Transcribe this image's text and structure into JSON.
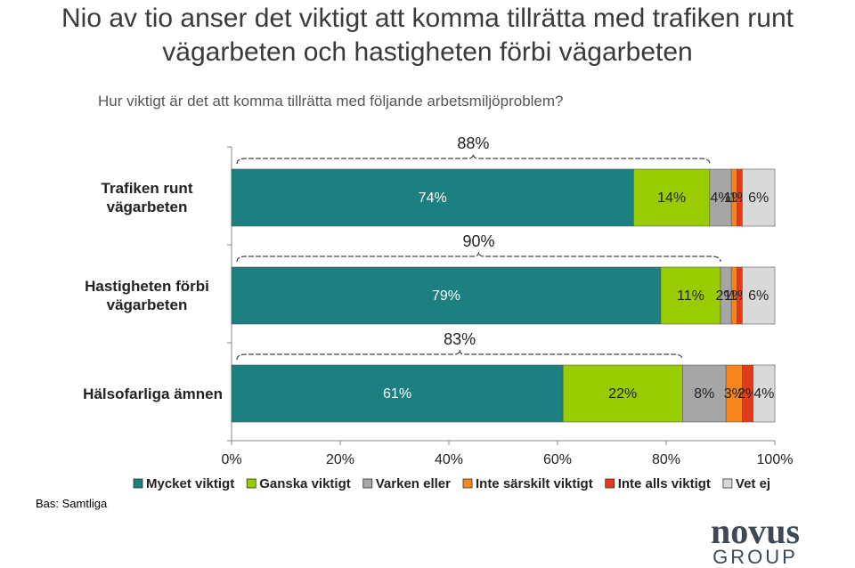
{
  "chart_data": {
    "type": "stacked-bar-horizontal",
    "title": "Nio av tio anser det viktigt att komma tillrätta med trafiken runt vägarbeten och hastigheten förbi vägarbeten",
    "subtitle": "Hur viktigt är det att komma tillrätta med följande arbetsmiljöproblem?",
    "categories": [
      "Trafiken runt vägarbeten",
      "Hastigheten förbi vägarbeten",
      "Hälsofarliga ämnen"
    ],
    "series": [
      {
        "name": "Mycket viktigt",
        "color": "#1c8080",
        "values": [
          74,
          79,
          61
        ],
        "value_labels": [
          "74%",
          "79%",
          "61%"
        ]
      },
      {
        "name": "Ganska viktigt",
        "color": "#99cc00",
        "values": [
          14,
          11,
          22
        ],
        "value_labels": [
          "14%",
          "11%",
          "22%"
        ]
      },
      {
        "name": "Varken eller",
        "color": "#a6a6a6",
        "values": [
          4,
          2,
          8
        ],
        "value_labels": [
          "4%",
          "2%",
          "8%"
        ]
      },
      {
        "name": "Inte särskilt viktigt",
        "color": "#f7861e",
        "values": [
          1,
          1,
          3
        ],
        "value_labels": [
          "1%",
          "1%",
          "3%"
        ]
      },
      {
        "name": "Inte alls viktigt",
        "color": "#e23b1c",
        "values": [
          1,
          1,
          2
        ],
        "value_labels": [
          "1%",
          "1%",
          "2%"
        ]
      },
      {
        "name": "Vet ej",
        "color": "#d9d9d9",
        "values": [
          6,
          6,
          4
        ],
        "value_labels": [
          "6%",
          "6%",
          "4%"
        ]
      }
    ],
    "annotations": [
      {
        "value": 88,
        "label": "88%"
      },
      {
        "value": 90,
        "label": "90%"
      },
      {
        "value": 83,
        "label": "83%"
      }
    ],
    "xlim": [
      0,
      100
    ],
    "xticks": [
      {
        "value": 0,
        "label": "0%"
      },
      {
        "value": 20,
        "label": "20%"
      },
      {
        "value": 40,
        "label": "40%"
      },
      {
        "value": 60,
        "label": "60%"
      },
      {
        "value": 80,
        "label": "80%"
      },
      {
        "value": 100,
        "label": "100%"
      }
    ],
    "legend": "bottom",
    "footnote": "Bas: Samtliga",
    "logo": {
      "name": "novus",
      "group": "GROUP"
    }
  }
}
